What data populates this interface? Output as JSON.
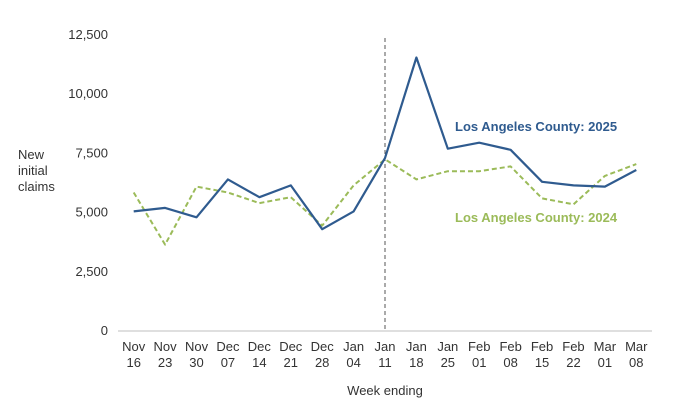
{
  "chart_data": {
    "type": "line",
    "title": "",
    "xlabel": "Week ending",
    "ylabel": [
      "New",
      "initial",
      "claims"
    ],
    "ylim": [
      0,
      12500
    ],
    "yticks": [
      "0",
      "2,500",
      "5,000",
      "7,500",
      "10,000",
      "12,500"
    ],
    "ytick_values": [
      0,
      2500,
      5000,
      7500,
      10000,
      12500
    ],
    "categories": [
      [
        "Nov",
        "16"
      ],
      [
        "Nov",
        "23"
      ],
      [
        "Nov",
        "30"
      ],
      [
        "Dec",
        "07"
      ],
      [
        "Dec",
        "14"
      ],
      [
        "Dec",
        "21"
      ],
      [
        "Dec",
        "28"
      ],
      [
        "Jan",
        "04"
      ],
      [
        "Jan",
        "11"
      ],
      [
        "Jan",
        "18"
      ],
      [
        "Jan",
        "25"
      ],
      [
        "Feb",
        "01"
      ],
      [
        "Feb",
        "08"
      ],
      [
        "Feb",
        "15"
      ],
      [
        "Feb",
        "22"
      ],
      [
        "Mar",
        "01"
      ],
      [
        "Mar",
        "08"
      ]
    ],
    "marker_category_index": 8,
    "series": [
      {
        "name": "Los Angeles County: 2025",
        "color": "#2f5b8f",
        "style": "solid",
        "values": [
          5050,
          5200,
          4800,
          6400,
          5650,
          6150,
          4300,
          5050,
          7300,
          11550,
          7700,
          7950,
          7650,
          6300,
          6150,
          6100,
          6800
        ]
      },
      {
        "name": "Los Angeles County: 2024",
        "color": "#9bbb59",
        "style": "dashed",
        "values": [
          5850,
          3650,
          6100,
          5850,
          5400,
          5650,
          4450,
          6150,
          7250,
          6400,
          6750,
          6750,
          6950,
          5600,
          5350,
          6550,
          7050
        ]
      }
    ],
    "legend": [
      "Los Angeles County: 2025",
      "Los Angeles County: 2024"
    ]
  }
}
